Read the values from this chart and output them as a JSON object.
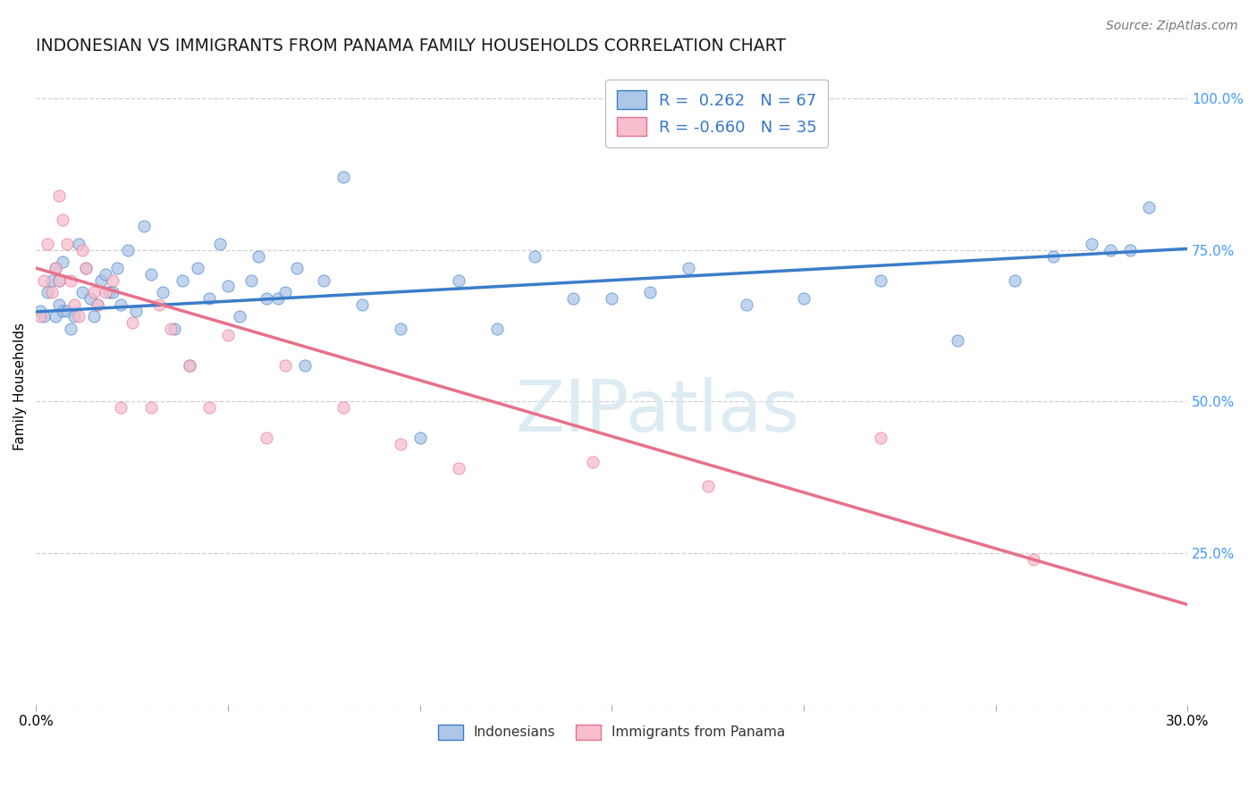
{
  "title": "INDONESIAN VS IMMIGRANTS FROM PANAMA FAMILY HOUSEHOLDS CORRELATION CHART",
  "source": "Source: ZipAtlas.com",
  "ylabel": "Family Households",
  "R_blue": 0.262,
  "N_blue": 67,
  "R_pink": -0.66,
  "N_pink": 35,
  "blue_scatter_color": "#aec6e8",
  "blue_line_color": "#3a7dc9",
  "pink_scatter_color": "#f7bece",
  "pink_line_color": "#e8708a",
  "watermark": "ZIPatlas",
  "legend_label_blue": "Indonesians",
  "legend_label_pink": "Immigrants from Panama",
  "blue_points_x": [
    0.001,
    0.002,
    0.003,
    0.004,
    0.005,
    0.005,
    0.006,
    0.006,
    0.007,
    0.007,
    0.008,
    0.009,
    0.01,
    0.011,
    0.012,
    0.013,
    0.014,
    0.015,
    0.016,
    0.017,
    0.018,
    0.019,
    0.02,
    0.021,
    0.022,
    0.024,
    0.026,
    0.028,
    0.03,
    0.033,
    0.036,
    0.038,
    0.04,
    0.042,
    0.045,
    0.048,
    0.05,
    0.053,
    0.056,
    0.058,
    0.06,
    0.063,
    0.065,
    0.068,
    0.07,
    0.075,
    0.08,
    0.085,
    0.095,
    0.1,
    0.11,
    0.12,
    0.13,
    0.14,
    0.15,
    0.16,
    0.17,
    0.185,
    0.2,
    0.22,
    0.24,
    0.255,
    0.265,
    0.275,
    0.28,
    0.285,
    0.29
  ],
  "blue_points_y": [
    0.65,
    0.64,
    0.68,
    0.7,
    0.64,
    0.72,
    0.66,
    0.7,
    0.65,
    0.73,
    0.65,
    0.62,
    0.64,
    0.76,
    0.68,
    0.72,
    0.67,
    0.64,
    0.66,
    0.7,
    0.71,
    0.68,
    0.68,
    0.72,
    0.66,
    0.75,
    0.65,
    0.79,
    0.71,
    0.68,
    0.62,
    0.7,
    0.56,
    0.72,
    0.67,
    0.76,
    0.69,
    0.64,
    0.7,
    0.74,
    0.67,
    0.67,
    0.68,
    0.72,
    0.56,
    0.7,
    0.87,
    0.66,
    0.62,
    0.44,
    0.7,
    0.62,
    0.74,
    0.67,
    0.67,
    0.68,
    0.72,
    0.66,
    0.67,
    0.7,
    0.6,
    0.7,
    0.74,
    0.76,
    0.75,
    0.75,
    0.82
  ],
  "pink_points_x": [
    0.001,
    0.002,
    0.003,
    0.004,
    0.005,
    0.006,
    0.006,
    0.007,
    0.008,
    0.009,
    0.01,
    0.011,
    0.012,
    0.013,
    0.015,
    0.016,
    0.018,
    0.02,
    0.022,
    0.025,
    0.03,
    0.032,
    0.035,
    0.04,
    0.045,
    0.05,
    0.06,
    0.065,
    0.08,
    0.095,
    0.11,
    0.145,
    0.175,
    0.22,
    0.26
  ],
  "pink_points_y": [
    0.64,
    0.7,
    0.76,
    0.68,
    0.72,
    0.84,
    0.7,
    0.8,
    0.76,
    0.7,
    0.66,
    0.64,
    0.75,
    0.72,
    0.68,
    0.66,
    0.68,
    0.7,
    0.49,
    0.63,
    0.49,
    0.66,
    0.62,
    0.56,
    0.49,
    0.61,
    0.44,
    0.56,
    0.49,
    0.43,
    0.39,
    0.4,
    0.36,
    0.44,
    0.24
  ],
  "blue_line_x": [
    0.0,
    0.3
  ],
  "blue_line_y": [
    0.648,
    0.752
  ],
  "pink_line_x": [
    0.0,
    0.3
  ],
  "pink_line_y": [
    0.72,
    0.165
  ],
  "xlim": [
    0.0,
    0.3
  ],
  "ylim": [
    0.0,
    1.05
  ],
  "y_ticks": [
    0.0,
    0.25,
    0.5,
    0.75,
    1.0
  ],
  "x_ticks": [
    0.0,
    0.05,
    0.1,
    0.15,
    0.2,
    0.25,
    0.3
  ],
  "background_color": "#ffffff",
  "grid_color": "#d0d0d0",
  "title_fontsize": 13.5,
  "axis_label_fontsize": 11,
  "source_fontsize": 10,
  "legend_fontsize": 13,
  "scatter_size": 90,
  "scatter_alpha": 0.75,
  "line_width": 2.5,
  "right_tick_color": "#4499ff",
  "legend_text_color": "#3377cc"
}
